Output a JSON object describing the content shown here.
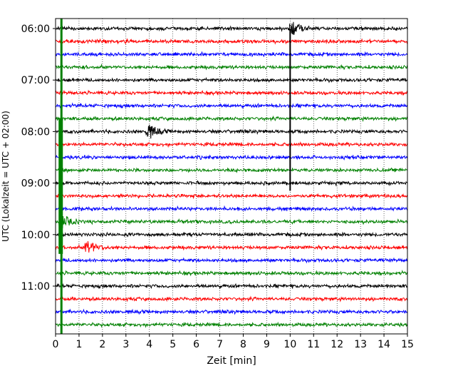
{
  "chart_data": {
    "type": "line",
    "title": "",
    "xlabel": "Zeit  [min]",
    "ylabel": "UTC (Lokalzeit = UTC + 02:00)",
    "xlim": [
      0,
      15
    ],
    "x_ticks": [
      "0",
      "1",
      "2",
      "3",
      "4",
      "5",
      "6",
      "7",
      "8",
      "9",
      "10",
      "11",
      "12",
      "13",
      "14",
      "15"
    ],
    "y_ticks": [
      "06:00",
      "07:00",
      "08:00",
      "09:00",
      "10:00",
      "11:00"
    ],
    "grid": "vertical dotted at each minute",
    "trace_interval_minutes": 15,
    "traces_start": "06:00",
    "trace_count": 24,
    "trace_colors": [
      "#000000",
      "#ff0000",
      "#0000ff",
      "#008000"
    ],
    "events": [
      {
        "trace_start": "06:00",
        "minute": 10.1,
        "description": "large black burst near top"
      },
      {
        "trace_start": "06:00",
        "minute": 10.0,
        "description": "vertical black spike through 09:15 trace"
      },
      {
        "trace_start": "06:00",
        "minute": 0.25,
        "description": "green vertical line through all traces"
      },
      {
        "trace_start": "09:45",
        "minute": 0.3,
        "description": "green burst"
      },
      {
        "trace_start": "10:15",
        "minute": 1.4,
        "description": "red burst"
      },
      {
        "trace_start": "08:00",
        "minute": 4.0,
        "description": "black burst"
      }
    ]
  }
}
